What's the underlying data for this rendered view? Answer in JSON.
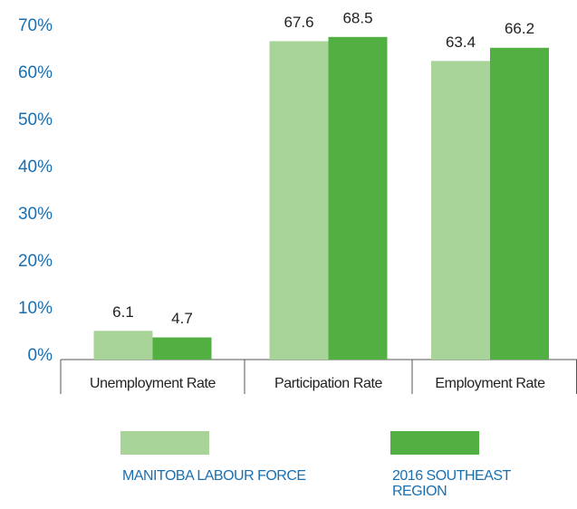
{
  "chart_data": {
    "type": "bar",
    "categories": [
      "Unemployment Rate",
      "Participation Rate",
      "Employment Rate"
    ],
    "series": [
      {
        "name": "MANITOBA LABOUR FORCE",
        "color": "#a8d49a",
        "values": [
          6.1,
          67.6,
          63.4
        ]
      },
      {
        "name": "2016 SOUTHEAST REGION",
        "color": "#52b043",
        "values": [
          4.7,
          68.5,
          66.2
        ]
      }
    ],
    "ylim": [
      0,
      70
    ],
    "yticks": [
      {
        "value": 0,
        "label": "0%"
      },
      {
        "value": 10,
        "label": "10%"
      },
      {
        "value": 20,
        "label": "20%"
      },
      {
        "value": 30,
        "label": "30%"
      },
      {
        "value": 40,
        "label": "40%"
      },
      {
        "value": 50,
        "label": "50%"
      },
      {
        "value": 60,
        "label": "60%"
      },
      {
        "value": 70,
        "label": "70%"
      }
    ],
    "legend": "bottom"
  }
}
